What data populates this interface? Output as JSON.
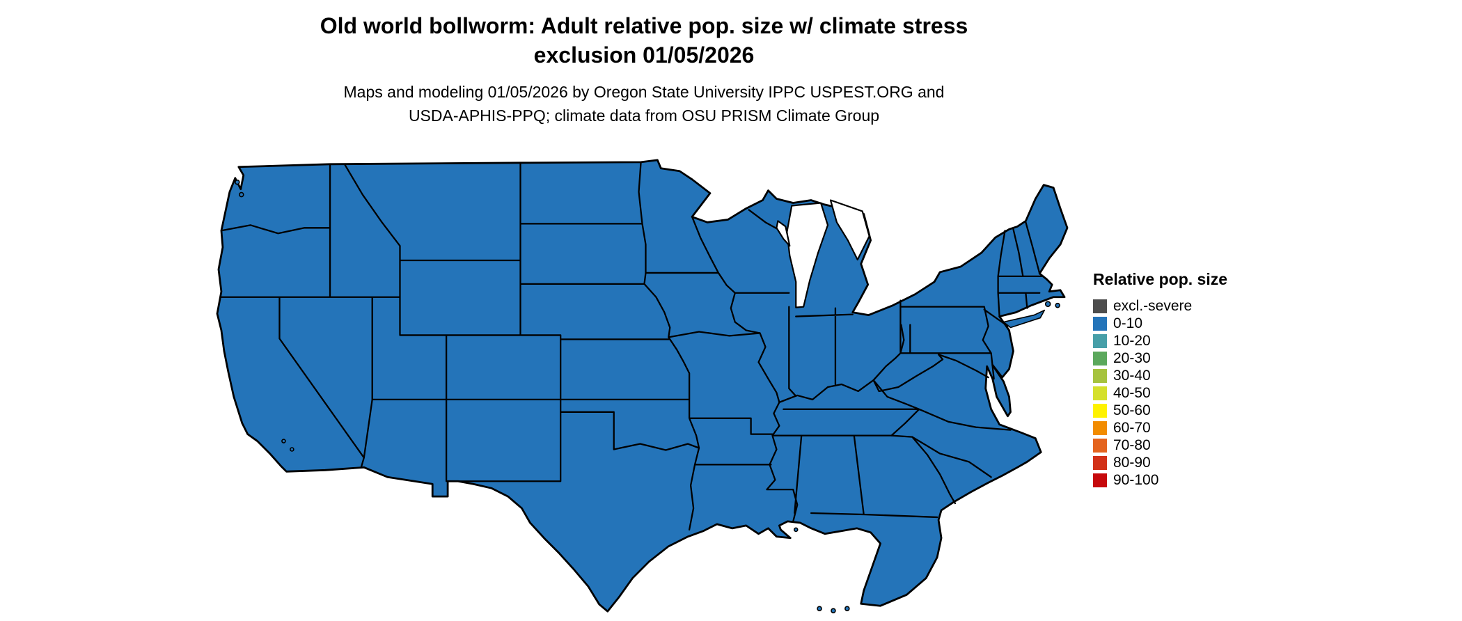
{
  "title": {
    "line1": "Old world bollworm: Adult relative pop. size w/ climate stress",
    "line2": "exclusion 01/05/2026"
  },
  "subtitle": {
    "line1": "Maps and modeling 01/05/2026 by Oregon State University IPPC USPEST.ORG and",
    "line2": "USDA-APHIS-PPQ; climate data from OSU PRISM Climate Group"
  },
  "legend": {
    "title": "Relative pop. size",
    "items": [
      {
        "label": "excl.-severe",
        "color": "#4d4d4d"
      },
      {
        "label": "0-10",
        "color": "#2474b9"
      },
      {
        "label": "10-20",
        "color": "#479fa8"
      },
      {
        "label": "20-30",
        "color": "#5ba85c"
      },
      {
        "label": "30-40",
        "color": "#a6c33e"
      },
      {
        "label": "40-50",
        "color": "#d5e02c"
      },
      {
        "label": "50-60",
        "color": "#fef200"
      },
      {
        "label": "60-70",
        "color": "#f28c00"
      },
      {
        "label": "70-80",
        "color": "#e4641f"
      },
      {
        "label": "80-90",
        "color": "#d23118"
      },
      {
        "label": "90-100",
        "color": "#c6090c"
      }
    ]
  },
  "map": {
    "region": "Contiguous United States",
    "all_states_category": "0-10",
    "fill_color": "#2474b9",
    "border_color": "#000000",
    "background_color": "#ffffff"
  }
}
